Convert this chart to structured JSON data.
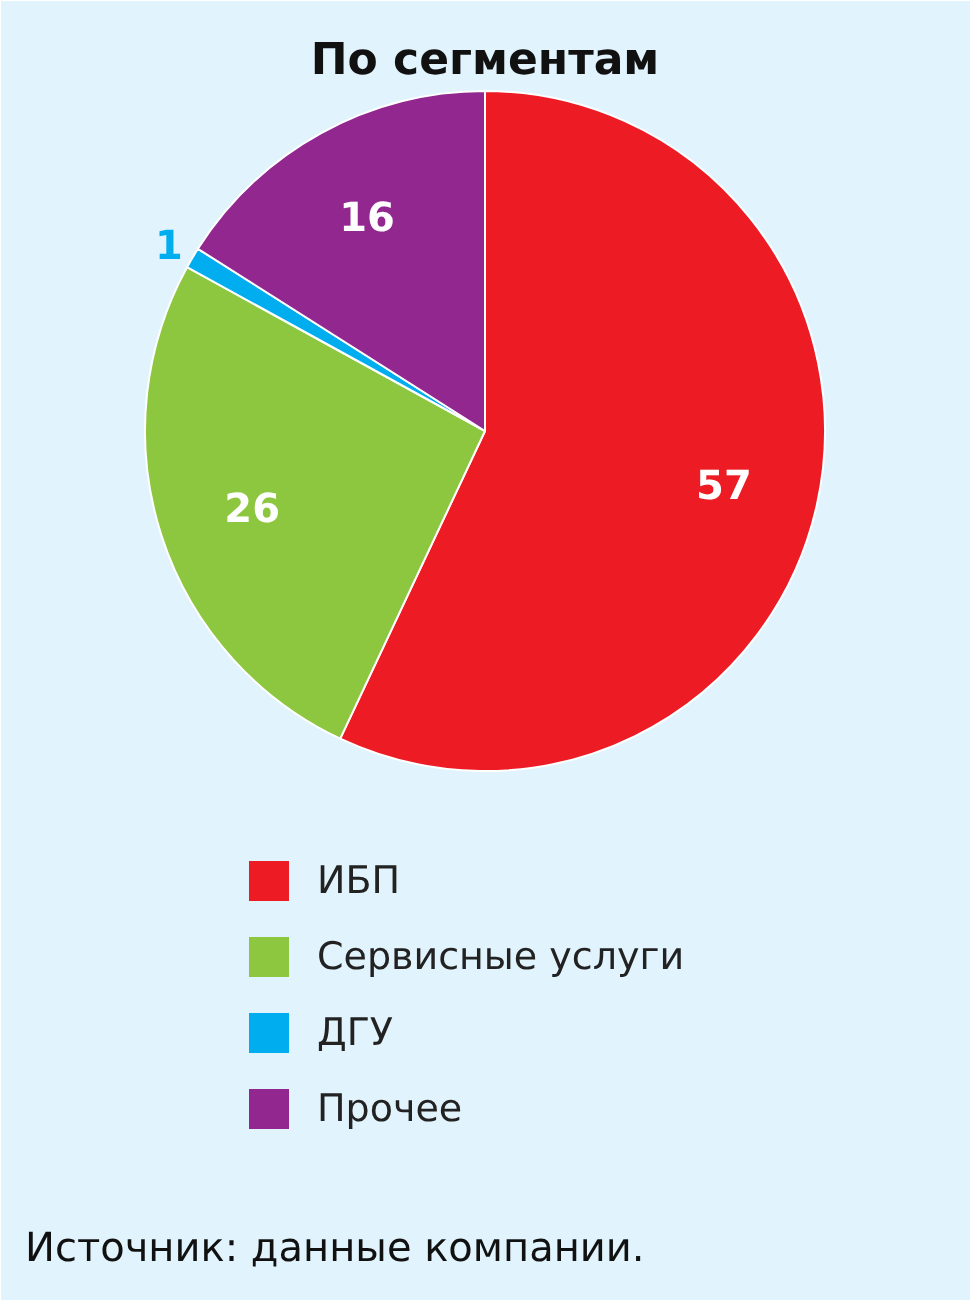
{
  "chart_data": {
    "type": "pie",
    "title": "По сегментам",
    "categories": [
      "ИБП",
      "Сервисные услуги",
      "ДГУ",
      "Прочее"
    ],
    "values": [
      57,
      26,
      1,
      16
    ],
    "colors": [
      "#ed1c24",
      "#8dc63f",
      "#00aeef",
      "#92278f"
    ],
    "data_labels": true,
    "legend": "bottom",
    "annotations": [
      "Источник: данные компании."
    ]
  }
}
